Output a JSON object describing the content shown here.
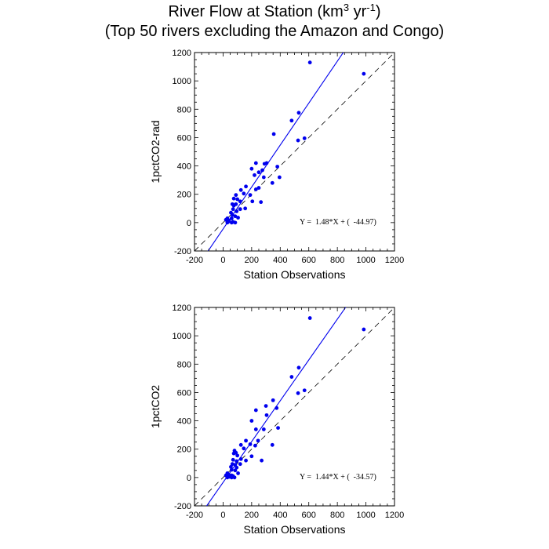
{
  "title": {
    "line1_prefix": "River Flow at Station (km",
    "line1_sup1": "3",
    "line1_mid": " yr",
    "line1_sup2": "-1",
    "line1_suffix": ")",
    "line2": "(Top 50 rivers excluding the Amazon and Congo)"
  },
  "chart_data": [
    {
      "type": "scatter",
      "xlabel": "Station Observations",
      "ylabel": "1pctCO2-rad",
      "xlim": [
        -200,
        1200
      ],
      "ylim": [
        -200,
        1200
      ],
      "xticks": [
        "-200",
        "0",
        "200",
        "400",
        "600",
        "800",
        "1000",
        "1200"
      ],
      "yticks": [
        "-200",
        "0",
        "200",
        "400",
        "600",
        "800",
        "1000",
        "1200"
      ],
      "equation": "Y =  1.48*X + (  -44.97)",
      "fit": {
        "slope": 1.48,
        "intercept": -44.97
      },
      "one_to_one_line": true,
      "point_color": "#0000ee",
      "points": [
        [
          608,
          1130
        ],
        [
          985,
          1050
        ],
        [
          530,
          775
        ],
        [
          480,
          720
        ],
        [
          355,
          625
        ],
        [
          570,
          595
        ],
        [
          525,
          580
        ],
        [
          305,
          420
        ],
        [
          230,
          420
        ],
        [
          290,
          415
        ],
        [
          380,
          395
        ],
        [
          200,
          380
        ],
        [
          275,
          370
        ],
        [
          250,
          355
        ],
        [
          220,
          335
        ],
        [
          395,
          320
        ],
        [
          285,
          320
        ],
        [
          345,
          280
        ],
        [
          160,
          255
        ],
        [
          250,
          245
        ],
        [
          230,
          235
        ],
        [
          125,
          230
        ],
        [
          145,
          205
        ],
        [
          190,
          195
        ],
        [
          90,
          195
        ],
        [
          100,
          165
        ],
        [
          75,
          170
        ],
        [
          120,
          150
        ],
        [
          205,
          150
        ],
        [
          265,
          145
        ],
        [
          65,
          130
        ],
        [
          90,
          130
        ],
        [
          75,
          120
        ],
        [
          155,
          100
        ],
        [
          120,
          95
        ],
        [
          70,
          95
        ],
        [
          95,
          80
        ],
        [
          55,
          70
        ],
        [
          65,
          55
        ],
        [
          85,
          45
        ],
        [
          105,
          35
        ],
        [
          60,
          30
        ],
        [
          30,
          30
        ],
        [
          20,
          20
        ],
        [
          40,
          15
        ],
        [
          35,
          5
        ],
        [
          70,
          5
        ],
        [
          60,
          0
        ],
        [
          85,
          0
        ],
        [
          30,
          0
        ]
      ]
    },
    {
      "type": "scatter",
      "xlabel": "Station Observations",
      "ylabel": "1pctCO2",
      "xlim": [
        -200,
        1200
      ],
      "ylim": [
        -200,
        1200
      ],
      "xticks": [
        "-200",
        "0",
        "200",
        "400",
        "600",
        "800",
        "1000",
        "1200"
      ],
      "yticks": [
        "-200",
        "0",
        "200",
        "400",
        "600",
        "800",
        "1000",
        "1200"
      ],
      "equation": "Y =  1.44*X + (  -34.57)",
      "fit": {
        "slope": 1.44,
        "intercept": -34.57
      },
      "one_to_one_line": true,
      "point_color": "#0000ee",
      "points": [
        [
          608,
          1125
        ],
        [
          985,
          1045
        ],
        [
          530,
          775
        ],
        [
          480,
          710
        ],
        [
          570,
          615
        ],
        [
          525,
          595
        ],
        [
          350,
          545
        ],
        [
          300,
          505
        ],
        [
          375,
          490
        ],
        [
          230,
          475
        ],
        [
          305,
          440
        ],
        [
          200,
          400
        ],
        [
          385,
          350
        ],
        [
          230,
          340
        ],
        [
          285,
          340
        ],
        [
          160,
          260
        ],
        [
          190,
          235
        ],
        [
          245,
          260
        ],
        [
          345,
          230
        ],
        [
          125,
          230
        ],
        [
          225,
          225
        ],
        [
          145,
          205
        ],
        [
          80,
          190
        ],
        [
          90,
          175
        ],
        [
          75,
          170
        ],
        [
          100,
          155
        ],
        [
          200,
          150
        ],
        [
          270,
          120
        ],
        [
          125,
          130
        ],
        [
          70,
          125
        ],
        [
          95,
          115
        ],
        [
          160,
          120
        ],
        [
          65,
          95
        ],
        [
          120,
          95
        ],
        [
          85,
          90
        ],
        [
          55,
          75
        ],
        [
          95,
          70
        ],
        [
          60,
          55
        ],
        [
          85,
          50
        ],
        [
          30,
          30
        ],
        [
          105,
          30
        ],
        [
          40,
          20
        ],
        [
          60,
          15
        ],
        [
          20,
          15
        ],
        [
          70,
          10
        ],
        [
          35,
          5
        ],
        [
          80,
          0
        ],
        [
          60,
          0
        ],
        [
          45,
          5
        ],
        [
          30,
          0
        ]
      ]
    }
  ]
}
